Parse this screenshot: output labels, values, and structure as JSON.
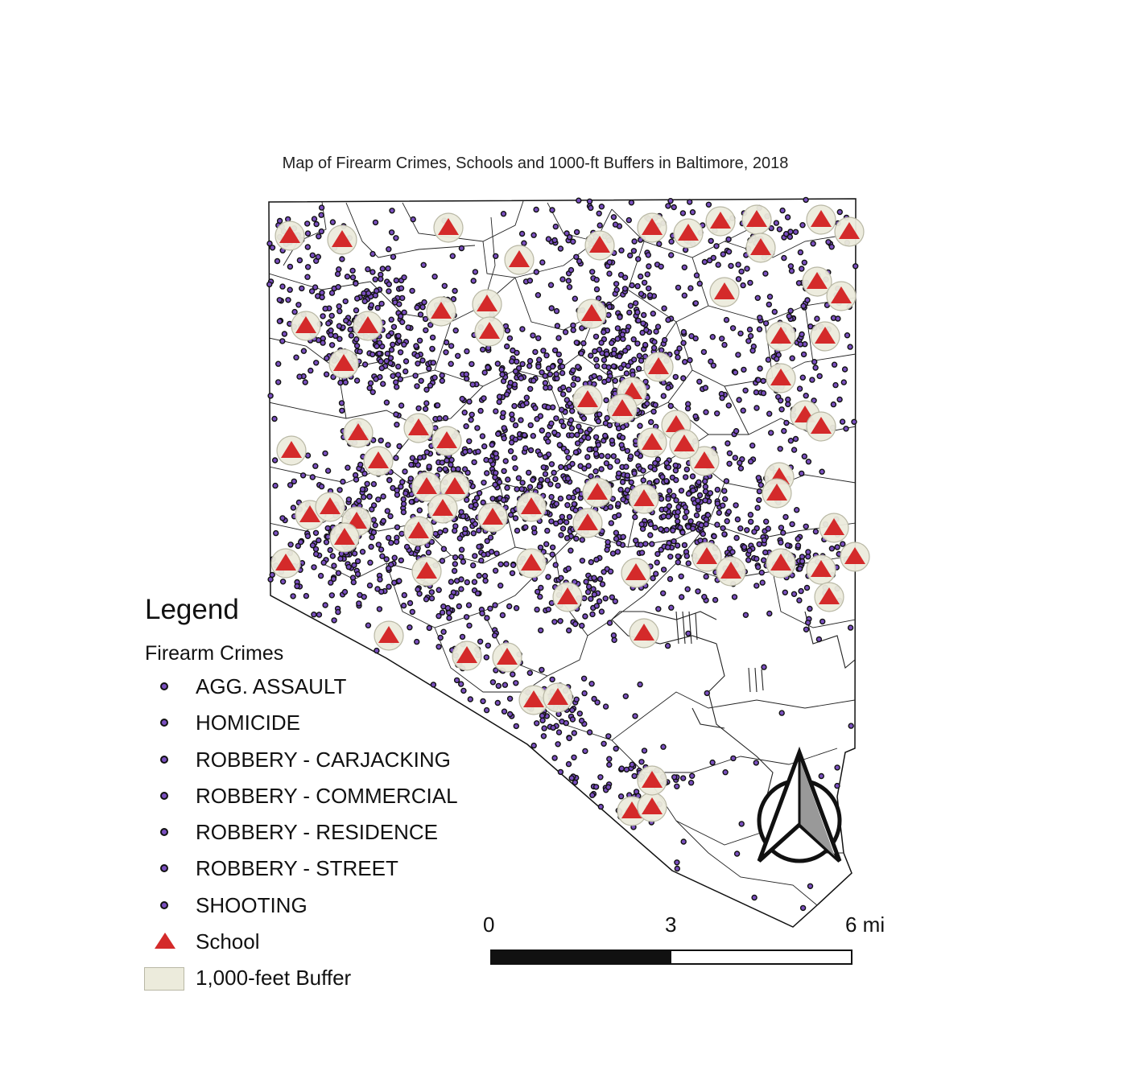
{
  "map": {
    "title": "Map of Firearm Crimes, Schools and 1000-ft Buffers in Baltimore, 2018",
    "colors": {
      "crime_dot_fill": "#7a4fc0",
      "crime_dot_stroke": "#111111",
      "school": "#d42a2a",
      "buffer_fill": "#ecebdc",
      "buffer_stroke": "#b9b8a5",
      "boundary": "#111111"
    },
    "icons": [
      "north-arrow-icon",
      "school-triangle-icon",
      "crime-dot-icon"
    ]
  },
  "legend": {
    "title": "Legend",
    "section_title": "Firearm Crimes",
    "items": [
      {
        "label": "AGG. ASSAULT",
        "symbol": "dot",
        "color": "#7a4fc0"
      },
      {
        "label": "HOMICIDE",
        "symbol": "dot",
        "color": "#7a4fc0"
      },
      {
        "label": "ROBBERY - CARJACKING",
        "symbol": "dot",
        "color": "#7a4fc0"
      },
      {
        "label": "ROBBERY - COMMERCIAL",
        "symbol": "dot",
        "color": "#7a4fc0"
      },
      {
        "label": "ROBBERY - RESIDENCE",
        "symbol": "dot",
        "color": "#7a4fc0"
      },
      {
        "label": "ROBBERY - STREET",
        "symbol": "dot",
        "color": "#7a4fc0"
      },
      {
        "label": "SHOOTING",
        "symbol": "dot",
        "color": "#7a4fc0"
      },
      {
        "label": "School",
        "symbol": "triangle",
        "color": "#d42a2a"
      },
      {
        "label": "1,000-feet Buffer",
        "symbol": "box",
        "color": "#ecebdc"
      }
    ]
  },
  "scale_bar": {
    "labels": [
      "0",
      "3",
      "6 mi"
    ]
  }
}
